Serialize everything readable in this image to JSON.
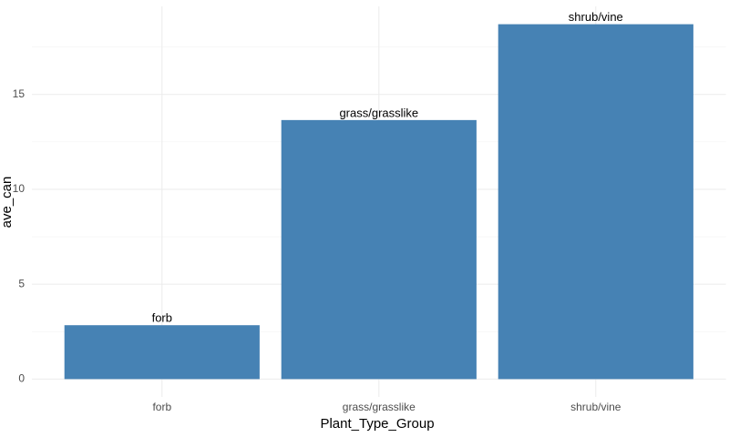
{
  "chart_data": {
    "type": "bar",
    "x_label": "Plant_Type_Group",
    "y_label": "ave_can",
    "categories": [
      "forb",
      "grass/grasslike",
      "shrub/vine"
    ],
    "values": [
      2.84,
      13.65,
      18.7
    ],
    "color": "#4682b4",
    "ylim": [
      -0.94,
      19.64
    ],
    "yticks": [
      0,
      5,
      10,
      15
    ],
    "grid": true
  }
}
